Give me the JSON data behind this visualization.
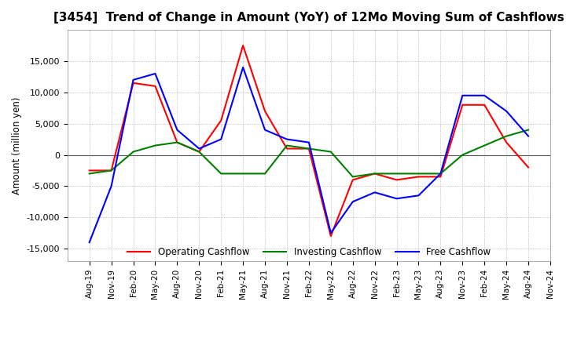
{
  "title": "[3454]  Trend of Change in Amount (YoY) of 12Mo Moving Sum of Cashflows",
  "ylabel": "Amount (million yen)",
  "ylim": [
    -17000,
    20000
  ],
  "yticks": [
    -15000,
    -10000,
    -5000,
    0,
    5000,
    10000,
    15000
  ],
  "x_labels": [
    "Aug-19",
    "Nov-19",
    "Feb-20",
    "May-20",
    "Aug-20",
    "Nov-20",
    "Feb-21",
    "May-21",
    "Aug-21",
    "Nov-21",
    "Feb-22",
    "May-22",
    "Aug-22",
    "Nov-22",
    "Feb-23",
    "May-23",
    "Aug-23",
    "Nov-23",
    "Feb-24",
    "May-24",
    "Aug-24",
    "Nov-24"
  ],
  "operating": [
    -2500,
    -2500,
    11500,
    11000,
    2000,
    500,
    5500,
    17500,
    7000,
    1000,
    1000,
    -13000,
    -4000,
    -3000,
    -4000,
    -3500,
    -3500,
    8000,
    8000,
    2000,
    -2000,
    null
  ],
  "investing": [
    -3000,
    -2500,
    500,
    1500,
    2000,
    500,
    -3000,
    -3000,
    -3000,
    1500,
    1000,
    500,
    -3500,
    -3000,
    -3000,
    -3000,
    -3000,
    0,
    1500,
    3000,
    4000,
    null
  ],
  "free": [
    -14000,
    -5000,
    12000,
    13000,
    4000,
    1000,
    2500,
    14000,
    4000,
    2500,
    2000,
    -12500,
    -7500,
    -6000,
    -7000,
    -6500,
    -3000,
    9500,
    9500,
    7000,
    3000,
    null
  ],
  "operating_color": "#ff0000",
  "investing_color": "#008000",
  "free_color": "#0000ff",
  "line_width": 1.5,
  "title_fontsize": 11,
  "background_color": "#ffffff",
  "grid_color": "#aaaaaa",
  "zero_line_color": "#555555"
}
